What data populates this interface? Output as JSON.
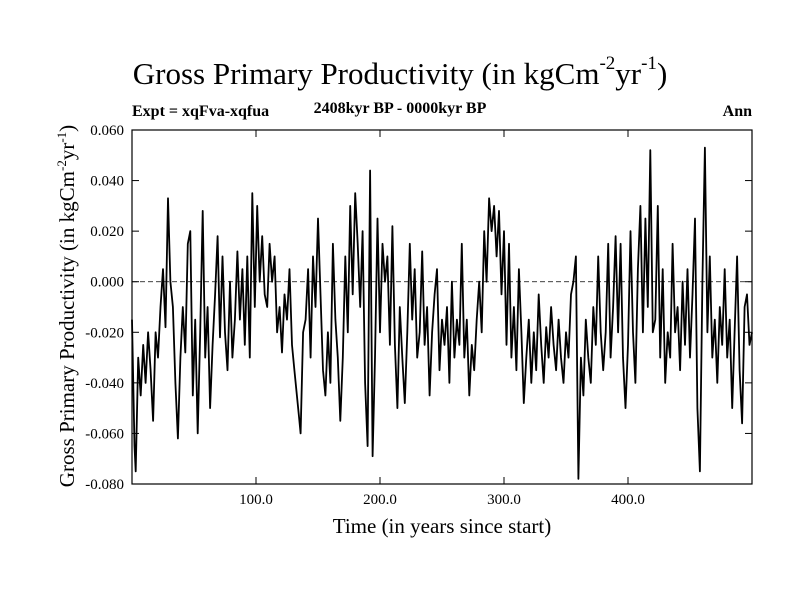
{
  "chart_data": {
    "type": "line",
    "title": "Gross Primary Productivity (in kgCm",
    "title_unit_exp1": "-2",
    "title_unit_mid": "yr",
    "title_unit_exp2": "-1",
    "title_close": ")",
    "subtitle_left": "Expt = xqFva-xqfua",
    "subtitle_center": "2408kyr BP - 0000kyr BP",
    "subtitle_right": "Ann",
    "xlabel": "Time (in years since start)",
    "ylabel_prefix": "Gross Primary Productivity (in kgCm",
    "ylabel_exp1": "-2",
    "ylabel_mid": "yr",
    "ylabel_exp2": "-1",
    "ylabel_close": ")",
    "xlim": [
      0,
      500
    ],
    "ylim": [
      -0.08,
      0.06
    ],
    "xticks": [
      100,
      200,
      300,
      400
    ],
    "xtick_labels": [
      "100.0",
      "200.0",
      "300.0",
      "400.0"
    ],
    "yticks": [
      -0.08,
      -0.06,
      -0.04,
      -0.02,
      0.0,
      0.02,
      0.04,
      0.06
    ],
    "ytick_labels": [
      "-0.080",
      "-0.060",
      "-0.040",
      "-0.020",
      "0.000",
      "0.020",
      "0.040",
      "0.060"
    ],
    "zero_line": "dashed",
    "series": [
      {
        "name": "Ann",
        "color": "#000000",
        "points": [
          [
            0,
            -0.015
          ],
          [
            2,
            -0.065
          ],
          [
            3,
            -0.075
          ],
          [
            5,
            -0.03
          ],
          [
            7,
            -0.045
          ],
          [
            9,
            -0.025
          ],
          [
            11,
            -0.04
          ],
          [
            13,
            -0.02
          ],
          [
            15,
            -0.035
          ],
          [
            17,
            -0.055
          ],
          [
            19,
            -0.02
          ],
          [
            21,
            -0.03
          ],
          [
            23,
            -0.01
          ],
          [
            25,
            0.005
          ],
          [
            27,
            -0.018
          ],
          [
            29,
            0.033
          ],
          [
            31,
            0.0
          ],
          [
            33,
            -0.01
          ],
          [
            35,
            -0.04
          ],
          [
            37,
            -0.062
          ],
          [
            39,
            -0.03
          ],
          [
            41,
            -0.01
          ],
          [
            43,
            -0.028
          ],
          [
            45,
            0.015
          ],
          [
            47,
            0.02
          ],
          [
            49,
            -0.045
          ],
          [
            51,
            -0.015
          ],
          [
            53,
            -0.06
          ],
          [
            55,
            -0.02
          ],
          [
            57,
            0.028
          ],
          [
            59,
            -0.03
          ],
          [
            61,
            -0.01
          ],
          [
            63,
            -0.05
          ],
          [
            65,
            -0.025
          ],
          [
            67,
            -0.005
          ],
          [
            69,
            0.018
          ],
          [
            71,
            -0.022
          ],
          [
            73,
            0.01
          ],
          [
            75,
            -0.02
          ],
          [
            77,
            -0.035
          ],
          [
            79,
            0.0
          ],
          [
            81,
            -0.03
          ],
          [
            83,
            -0.015
          ],
          [
            85,
            0.012
          ],
          [
            87,
            -0.015
          ],
          [
            89,
            0.005
          ],
          [
            91,
            -0.025
          ],
          [
            93,
            0.01
          ],
          [
            95,
            -0.03
          ],
          [
            97,
            0.035
          ],
          [
            99,
            -0.01
          ],
          [
            101,
            0.03
          ],
          [
            103,
            0.0
          ],
          [
            105,
            0.018
          ],
          [
            107,
            -0.005
          ],
          [
            109,
            -0.01
          ],
          [
            111,
            0.015
          ],
          [
            113,
            0.0
          ],
          [
            115,
            0.01
          ],
          [
            117,
            -0.02
          ],
          [
            119,
            -0.01
          ],
          [
            121,
            -0.028
          ],
          [
            123,
            -0.005
          ],
          [
            125,
            -0.015
          ],
          [
            127,
            0.005
          ],
          [
            129,
            -0.025
          ],
          [
            131,
            -0.035
          ],
          [
            133,
            -0.045
          ],
          [
            135,
            -0.055
          ],
          [
            136,
            -0.06
          ],
          [
            138,
            -0.02
          ],
          [
            140,
            -0.015
          ],
          [
            142,
            0.005
          ],
          [
            144,
            -0.03
          ],
          [
            146,
            0.01
          ],
          [
            148,
            -0.01
          ],
          [
            150,
            0.025
          ],
          [
            152,
            -0.005
          ],
          [
            154,
            -0.035
          ],
          [
            156,
            -0.045
          ],
          [
            158,
            -0.02
          ],
          [
            160,
            -0.04
          ],
          [
            162,
            0.015
          ],
          [
            164,
            -0.015
          ],
          [
            166,
            -0.03
          ],
          [
            168,
            -0.055
          ],
          [
            170,
            -0.03
          ],
          [
            172,
            0.01
          ],
          [
            174,
            -0.02
          ],
          [
            176,
            0.03
          ],
          [
            178,
            -0.005
          ],
          [
            180,
            0.035
          ],
          [
            182,
            0.015
          ],
          [
            184,
            -0.01
          ],
          [
            186,
            0.02
          ],
          [
            188,
            -0.04
          ],
          [
            190,
            -0.065
          ],
          [
            192,
            0.044
          ],
          [
            194,
            -0.069
          ],
          [
            196,
            -0.03
          ],
          [
            198,
            0.025
          ],
          [
            200,
            -0.02
          ],
          [
            202,
            0.015
          ],
          [
            204,
            0.0
          ],
          [
            206,
            0.01
          ],
          [
            208,
            -0.025
          ],
          [
            210,
            0.022
          ],
          [
            212,
            -0.025
          ],
          [
            214,
            -0.05
          ],
          [
            216,
            -0.01
          ],
          [
            218,
            -0.03
          ],
          [
            220,
            -0.048
          ],
          [
            222,
            -0.02
          ],
          [
            224,
            0.015
          ],
          [
            226,
            -0.015
          ],
          [
            228,
            0.005
          ],
          [
            230,
            -0.03
          ],
          [
            232,
            -0.02
          ],
          [
            234,
            0.012
          ],
          [
            236,
            -0.025
          ],
          [
            238,
            -0.01
          ],
          [
            240,
            -0.045
          ],
          [
            242,
            -0.02
          ],
          [
            244,
            -0.005
          ],
          [
            246,
            0.005
          ],
          [
            248,
            -0.035
          ],
          [
            250,
            -0.015
          ],
          [
            252,
            -0.025
          ],
          [
            254,
            -0.01
          ],
          [
            256,
            -0.04
          ],
          [
            258,
            0.0
          ],
          [
            260,
            -0.03
          ],
          [
            262,
            -0.015
          ],
          [
            264,
            -0.025
          ],
          [
            266,
            0.015
          ],
          [
            268,
            -0.03
          ],
          [
            270,
            -0.015
          ],
          [
            272,
            -0.045
          ],
          [
            274,
            -0.025
          ],
          [
            276,
            -0.035
          ],
          [
            278,
            -0.015
          ],
          [
            280,
            0.0
          ],
          [
            282,
            -0.02
          ],
          [
            284,
            0.02
          ],
          [
            286,
            0.0
          ],
          [
            288,
            0.033
          ],
          [
            290,
            0.02
          ],
          [
            292,
            0.03
          ],
          [
            294,
            0.01
          ],
          [
            296,
            0.028
          ],
          [
            298,
            -0.005
          ],
          [
            300,
            0.02
          ],
          [
            302,
            -0.025
          ],
          [
            304,
            0.015
          ],
          [
            306,
            -0.03
          ],
          [
            308,
            -0.01
          ],
          [
            310,
            -0.035
          ],
          [
            312,
            0.005
          ],
          [
            314,
            -0.02
          ],
          [
            316,
            -0.048
          ],
          [
            318,
            -0.03
          ],
          [
            320,
            -0.015
          ],
          [
            322,
            -0.04
          ],
          [
            324,
            -0.02
          ],
          [
            326,
            -0.035
          ],
          [
            328,
            -0.005
          ],
          [
            330,
            -0.025
          ],
          [
            332,
            -0.04
          ],
          [
            334,
            -0.018
          ],
          [
            336,
            -0.03
          ],
          [
            338,
            -0.01
          ],
          [
            340,
            -0.025
          ],
          [
            342,
            -0.035
          ],
          [
            344,
            -0.015
          ],
          [
            346,
            -0.03
          ],
          [
            348,
            -0.04
          ],
          [
            350,
            -0.02
          ],
          [
            352,
            -0.03
          ],
          [
            354,
            -0.005
          ],
          [
            356,
            0.0
          ],
          [
            358,
            0.01
          ],
          [
            360,
            -0.078
          ],
          [
            362,
            -0.03
          ],
          [
            364,
            -0.045
          ],
          [
            366,
            -0.015
          ],
          [
            368,
            -0.03
          ],
          [
            370,
            -0.04
          ],
          [
            372,
            -0.01
          ],
          [
            374,
            -0.025
          ],
          [
            376,
            0.01
          ],
          [
            378,
            -0.02
          ],
          [
            380,
            -0.035
          ],
          [
            382,
            -0.02
          ],
          [
            384,
            0.015
          ],
          [
            386,
            -0.03
          ],
          [
            388,
            -0.01
          ],
          [
            390,
            0.018
          ],
          [
            392,
            -0.02
          ],
          [
            394,
            0.015
          ],
          [
            396,
            -0.03
          ],
          [
            398,
            -0.05
          ],
          [
            400,
            -0.025
          ],
          [
            402,
            0.02
          ],
          [
            404,
            -0.02
          ],
          [
            406,
            -0.04
          ],
          [
            408,
            0.005
          ],
          [
            410,
            0.03
          ],
          [
            412,
            -0.02
          ],
          [
            414,
            0.025
          ],
          [
            416,
            -0.01
          ],
          [
            418,
            0.052
          ],
          [
            420,
            -0.02
          ],
          [
            422,
            -0.015
          ],
          [
            424,
            0.03
          ],
          [
            426,
            -0.03
          ],
          [
            428,
            0.005
          ],
          [
            430,
            -0.04
          ],
          [
            432,
            -0.02
          ],
          [
            434,
            -0.03
          ],
          [
            436,
            0.015
          ],
          [
            438,
            -0.02
          ],
          [
            440,
            -0.01
          ],
          [
            442,
            -0.035
          ],
          [
            444,
            0.0
          ],
          [
            446,
            -0.025
          ],
          [
            448,
            0.005
          ],
          [
            450,
            -0.03
          ],
          [
            452,
            -0.005
          ],
          [
            454,
            0.025
          ],
          [
            456,
            -0.05
          ],
          [
            458,
            -0.075
          ],
          [
            460,
            0.0
          ],
          [
            462,
            0.053
          ],
          [
            464,
            -0.02
          ],
          [
            466,
            0.01
          ],
          [
            468,
            -0.03
          ],
          [
            470,
            -0.015
          ],
          [
            472,
            -0.04
          ],
          [
            474,
            -0.01
          ],
          [
            476,
            -0.025
          ],
          [
            478,
            0.005
          ],
          [
            480,
            -0.03
          ],
          [
            482,
            -0.015
          ],
          [
            484,
            -0.05
          ],
          [
            486,
            -0.02
          ],
          [
            488,
            0.01
          ],
          [
            490,
            -0.035
          ],
          [
            492,
            -0.056
          ],
          [
            494,
            -0.01
          ],
          [
            496,
            -0.005
          ],
          [
            498,
            -0.025
          ],
          [
            500,
            -0.02
          ]
        ]
      }
    ]
  }
}
